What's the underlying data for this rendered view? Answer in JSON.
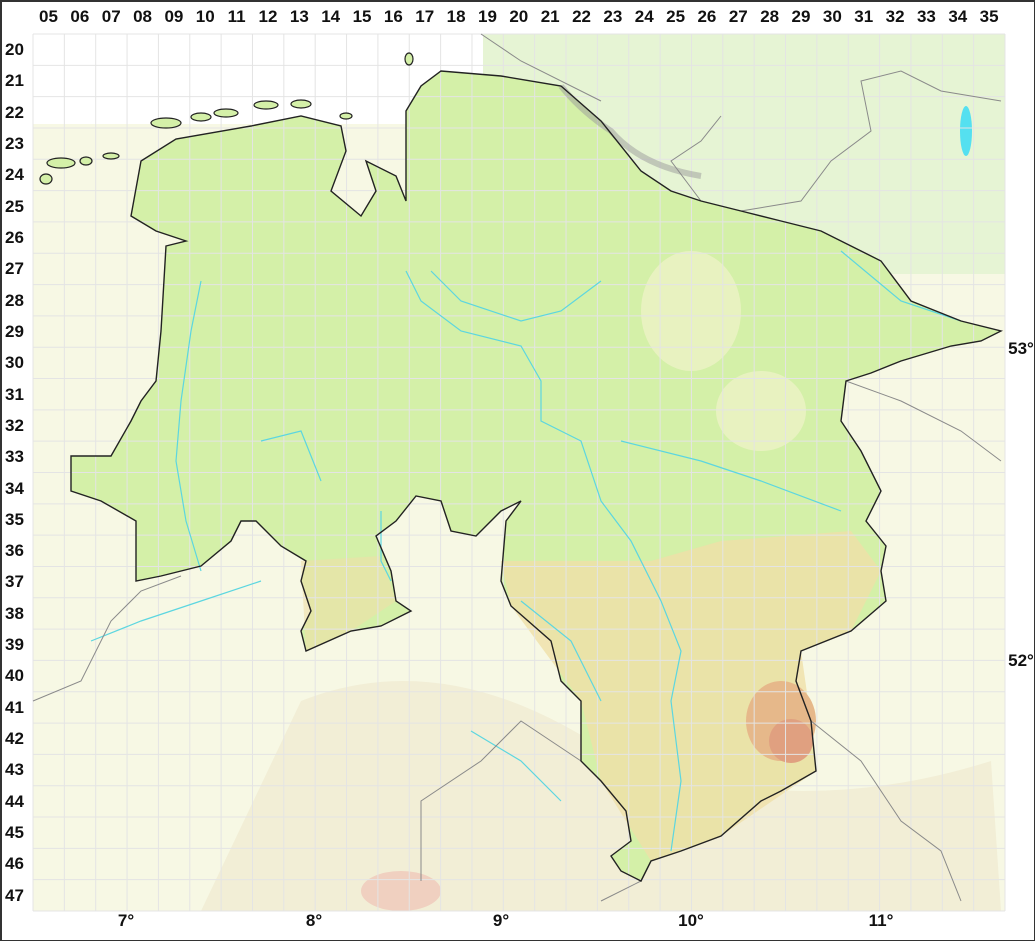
{
  "map": {
    "grid_columns": [
      "05",
      "06",
      "07",
      "08",
      "09",
      "10",
      "11",
      "12",
      "13",
      "14",
      "15",
      "16",
      "17",
      "18",
      "19",
      "20",
      "21",
      "22",
      "23",
      "24",
      "25",
      "26",
      "27",
      "28",
      "29",
      "30",
      "31",
      "32",
      "33",
      "34",
      "35"
    ],
    "grid_rows": [
      "20",
      "21",
      "22",
      "23",
      "24",
      "25",
      "26",
      "27",
      "28",
      "29",
      "30",
      "31",
      "32",
      "33",
      "34",
      "35",
      "36",
      "37",
      "38",
      "39",
      "40",
      "41",
      "42",
      "43",
      "44",
      "45",
      "46",
      "47"
    ],
    "longitude_labels": [
      "7°",
      "8°",
      "9°",
      "10°",
      "11°"
    ],
    "latitude_labels": [
      "53°",
      "52°"
    ],
    "colors": {
      "region_fill": "#d4f0a8",
      "outside_fill": "#f7f8e4",
      "grid_line": "#e4e4e4",
      "river": "#5cd6e0",
      "region_border": "#222222",
      "outer_border": "#8a8a8a",
      "highland": "#e0a080",
      "upland": "#efe0a8",
      "lake": "#55e0f0"
    }
  }
}
